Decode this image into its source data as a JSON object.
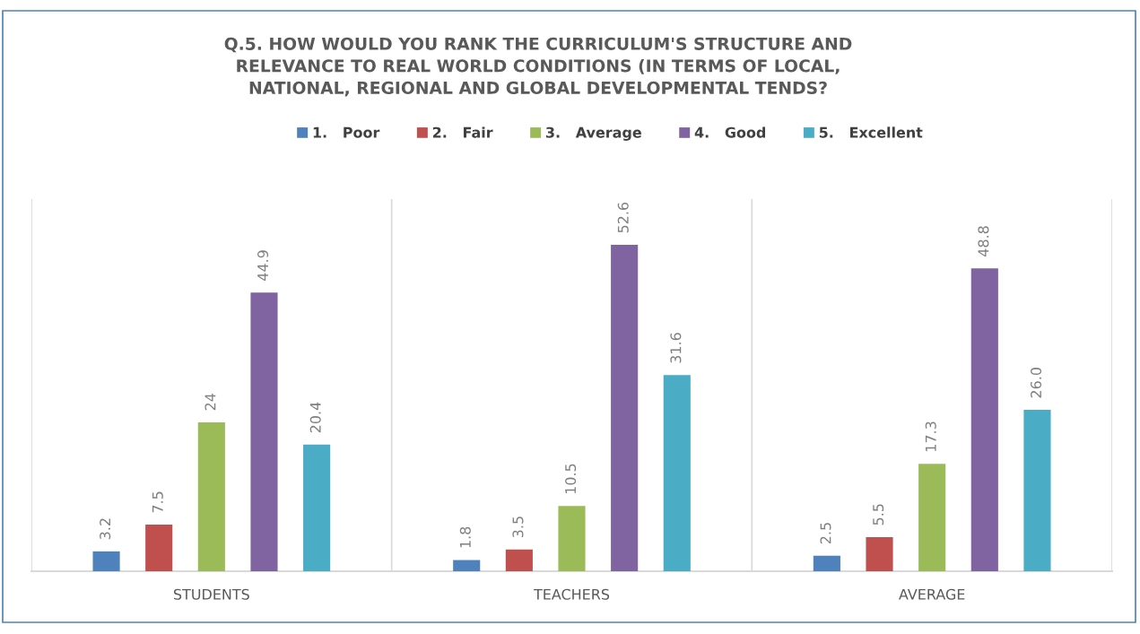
{
  "chart_data": {
    "type": "bar",
    "title": "Q.5. HOW WOULD YOU RANK THE CURRICULUM'S STRUCTURE AND\nRELEVANCE TO REAL WORLD CONDITIONS (IN TERMS OF LOCAL,\nNATIONAL, REGIONAL AND GLOBAL DEVELOPMENTAL TENDS?",
    "categories": [
      "STUDENTS",
      "TEACHERS",
      "AVERAGE"
    ],
    "series": [
      {
        "name": "1.   Poor",
        "color": "#4f81bd",
        "values": [
          3.2,
          1.8,
          2.5
        ],
        "value_labels": [
          "3.2",
          "1.8",
          "2.5"
        ]
      },
      {
        "name": "2.   Fair",
        "color": "#c0504d",
        "values": [
          7.5,
          3.5,
          5.5
        ],
        "value_labels": [
          "7.5",
          "3.5",
          "5.5"
        ]
      },
      {
        "name": "3.   Average",
        "color": "#9bbb59",
        "values": [
          24,
          10.5,
          17.3
        ],
        "value_labels": [
          "24",
          "10.5",
          "17.3"
        ]
      },
      {
        "name": "4.   Good",
        "color": "#8064a2",
        "values": [
          44.9,
          52.6,
          48.8
        ],
        "value_labels": [
          "44.9",
          "52.6",
          "48.8"
        ]
      },
      {
        "name": "5.   Excellent",
        "color": "#4bacc6",
        "values": [
          20.4,
          31.6,
          26.0
        ],
        "value_labels": [
          "20.4",
          "31.6",
          "26.0"
        ]
      }
    ],
    "grid": "x",
    "legend": "top",
    "tick_labels": "x"
  }
}
